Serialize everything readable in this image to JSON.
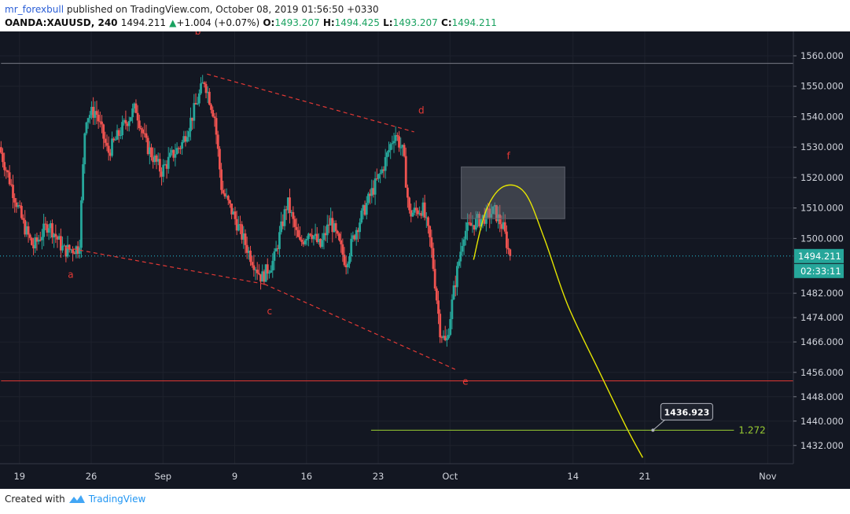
{
  "header": {
    "author": "mr_forexbull",
    "published_text": " published on TradingView.com, October 08, 2019 01:56:50 +0330",
    "symbol": "OANDA:XAUUSD, 240",
    "last": "1494.211",
    "change_icon": "triangle-up-icon",
    "change_arrow": "▲",
    "change": "+1.004 (+0.07%)",
    "o_label": "O:",
    "o_value": "1493.207",
    "h_label": "H:",
    "h_value": "1494.425",
    "l_label": "L:",
    "l_value": "1493.207",
    "c_label": "C:",
    "c_value": "1494.211"
  },
  "footer": {
    "created_with": "Created with",
    "brand": "TradingView",
    "logo_icon": "tradingview-logo-icon"
  },
  "colors": {
    "background": "#131722",
    "bull": "#26a69a",
    "bear": "#ef5350",
    "annotation": "#e53935",
    "curve": "#e6e600",
    "fib": "#9acd32",
    "price_line": "#26c6da"
  },
  "chart_data": {
    "type": "candlestick",
    "symbol": "OANDA:XAUUSD",
    "timeframe": "240",
    "ylim": [
      1426,
      1568
    ],
    "y_ticks": [
      1560,
      1550,
      1540,
      1530,
      1520,
      1510,
      1500,
      1482,
      1474,
      1466,
      1456,
      1448,
      1440,
      1432
    ],
    "y_tick_labels": [
      "1560.000",
      "1550.000",
      "1540.000",
      "1530.000",
      "1520.000",
      "1510.000",
      "1500.000",
      "1482.000",
      "1474.000",
      "1466.000",
      "1456.000",
      "1448.000",
      "1440.000",
      "1432.000"
    ],
    "x_ticks": [
      {
        "day": 19,
        "label": "19"
      },
      {
        "day": 26,
        "label": "26"
      },
      {
        "day": 33,
        "label": "Sep"
      },
      {
        "day": 40,
        "label": "9"
      },
      {
        "day": 47,
        "label": "16"
      },
      {
        "day": 54,
        "label": "23"
      },
      {
        "day": 61,
        "label": "Oct"
      },
      {
        "day": 73,
        "label": "14"
      },
      {
        "day": 80,
        "label": "21"
      },
      {
        "day": 92,
        "label": "Nov"
      }
    ],
    "xlim": [
      17.1,
      94.5
    ],
    "price_marker": {
      "value": 1494.211,
      "label": "1494.211",
      "countdown": "02:33:11"
    },
    "anchors": [
      {
        "day": 17.2,
        "price": 1530
      },
      {
        "day": 19.5,
        "price": 1505
      },
      {
        "day": 20.5,
        "price": 1497
      },
      {
        "day": 22,
        "price": 1505
      },
      {
        "day": 23.5,
        "price": 1496
      },
      {
        "day": 25,
        "price": 1497
      },
      {
        "day": 25.6,
        "price": 1540
      },
      {
        "day": 26.6,
        "price": 1542
      },
      {
        "day": 27.8,
        "price": 1528
      },
      {
        "day": 29.5,
        "price": 1538
      },
      {
        "day": 30.5,
        "price": 1543
      },
      {
        "day": 31.5,
        "price": 1531
      },
      {
        "day": 33,
        "price": 1522
      },
      {
        "day": 34,
        "price": 1527
      },
      {
        "day": 35,
        "price": 1531
      },
      {
        "day": 36,
        "price": 1540
      },
      {
        "day": 37.2,
        "price": 1552
      },
      {
        "day": 38.2,
        "price": 1540
      },
      {
        "day": 38.9,
        "price": 1516
      },
      {
        "day": 40,
        "price": 1508
      },
      {
        "day": 41.6,
        "price": 1495
      },
      {
        "day": 42.8,
        "price": 1487
      },
      {
        "day": 44,
        "price": 1493
      },
      {
        "day": 45.3,
        "price": 1512
      },
      {
        "day": 46.5,
        "price": 1498
      },
      {
        "day": 47.5,
        "price": 1503
      },
      {
        "day": 48.5,
        "price": 1497
      },
      {
        "day": 49.5,
        "price": 1506
      },
      {
        "day": 51,
        "price": 1492
      },
      {
        "day": 52,
        "price": 1503
      },
      {
        "day": 53.5,
        "price": 1515
      },
      {
        "day": 54.5,
        "price": 1522
      },
      {
        "day": 55.8,
        "price": 1535
      },
      {
        "day": 56.6,
        "price": 1528
      },
      {
        "day": 57.2,
        "price": 1508
      },
      {
        "day": 58.5,
        "price": 1510
      },
      {
        "day": 59.3,
        "price": 1498
      },
      {
        "day": 60.2,
        "price": 1470
      },
      {
        "day": 60.8,
        "price": 1465
      },
      {
        "day": 61.5,
        "price": 1482
      },
      {
        "day": 62.5,
        "price": 1502
      },
      {
        "day": 63.5,
        "price": 1505
      },
      {
        "day": 64.5,
        "price": 1507
      },
      {
        "day": 65.5,
        "price": 1509
      },
      {
        "day": 66.4,
        "price": 1503
      },
      {
        "day": 67,
        "price": 1494.2
      }
    ],
    "annotations": {
      "labels": [
        {
          "text": "a",
          "day": 24.0,
          "price": 1487
        },
        {
          "text": "b",
          "day": 36.4,
          "price": 1567
        },
        {
          "text": "c",
          "day": 43.4,
          "price": 1475
        },
        {
          "text": "d",
          "day": 58.2,
          "price": 1541
        },
        {
          "text": "e",
          "day": 62.5,
          "price": 1452
        },
        {
          "text": "f",
          "day": 66.7,
          "price": 1526
        }
      ],
      "trendlines": [
        {
          "from": {
            "day": 23.5,
            "price": 1497
          },
          "to": {
            "day": 42.9,
            "price": 1485
          }
        },
        {
          "from": {
            "day": 42.9,
            "price": 1485
          },
          "to": {
            "day": 61.5,
            "price": 1457
          }
        },
        {
          "from": {
            "day": 37.3,
            "price": 1554
          },
          "to": {
            "day": 57.5,
            "price": 1535
          }
        }
      ],
      "hlines": [
        {
          "price": 1557.5,
          "from_day": 17.2,
          "color": "#787b86"
        },
        {
          "price": 1453.2,
          "from_day": 17.2,
          "color": "#e53935"
        }
      ],
      "box": {
        "from_day": 62.1,
        "to_day": 72.2,
        "top": 1523.5,
        "bottom": 1506.5
      },
      "curve_points": [
        {
          "day": 63.3,
          "price": 1493
        },
        {
          "day": 64.5,
          "price": 1509
        },
        {
          "day": 66.2,
          "price": 1517
        },
        {
          "day": 68.3,
          "price": 1515
        },
        {
          "day": 70.2,
          "price": 1500
        },
        {
          "day": 72.5,
          "price": 1478
        },
        {
          "day": 75.6,
          "price": 1456
        },
        {
          "day": 78.2,
          "price": 1438
        },
        {
          "day": 79.8,
          "price": 1428
        }
      ],
      "fib_line": {
        "from_day": 53.3,
        "to_day": 88.7,
        "price": 1437.0,
        "label": "1.272"
      },
      "callout": {
        "label": "1436.923",
        "day": 80.8,
        "price": 1437.0
      }
    }
  }
}
